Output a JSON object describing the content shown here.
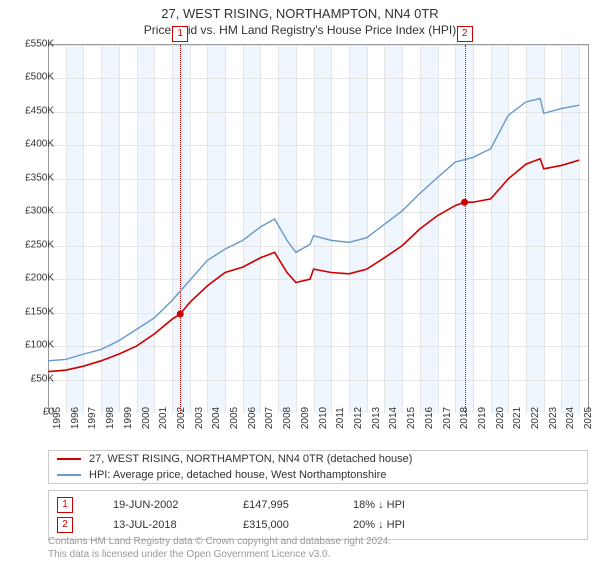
{
  "title": "27, WEST RISING, NORTHAMPTON, NN4 0TR",
  "subtitle": "Price paid vs. HM Land Registry's House Price Index (HPI)",
  "chart": {
    "type": "line",
    "background_color": "#ffffff",
    "altband_color": "#f0f6fd",
    "grid_color": "#e5e5e5",
    "axis_color": "#999999",
    "y": {
      "min": 0,
      "max": 550000,
      "tick_step": 50000,
      "labels": [
        "£0",
        "£50K",
        "£100K",
        "£150K",
        "£200K",
        "£250K",
        "£300K",
        "£350K",
        "£400K",
        "£450K",
        "£500K",
        "£550K"
      ],
      "label_fontsize": 10
    },
    "x": {
      "years": [
        1995,
        1996,
        1997,
        1998,
        1999,
        2000,
        2001,
        2002,
        2003,
        2004,
        2005,
        2006,
        2007,
        2008,
        2009,
        2010,
        2011,
        2012,
        2013,
        2014,
        2015,
        2016,
        2017,
        2018,
        2019,
        2020,
        2021,
        2022,
        2023,
        2024,
        2025
      ],
      "min": 1995,
      "max": 2025.5,
      "label_fontsize": 10
    },
    "series": [
      {
        "name": "subject_property",
        "label": "27, WEST RISING, NORTHAMPTON, NN4 0TR (detached house)",
        "color": "#cc0000",
        "line_width": 1.6,
        "data": [
          [
            1995,
            62000
          ],
          [
            1996,
            64000
          ],
          [
            1997,
            70000
          ],
          [
            1998,
            78000
          ],
          [
            1999,
            88000
          ],
          [
            2000,
            100000
          ],
          [
            2001,
            118000
          ],
          [
            2002,
            140000
          ],
          [
            2002.47,
            147995
          ],
          [
            2003,
            165000
          ],
          [
            2004,
            190000
          ],
          [
            2005,
            210000
          ],
          [
            2006,
            218000
          ],
          [
            2007,
            232000
          ],
          [
            2007.8,
            240000
          ],
          [
            2008.5,
            210000
          ],
          [
            2009,
            195000
          ],
          [
            2009.8,
            200000
          ],
          [
            2010,
            215000
          ],
          [
            2011,
            210000
          ],
          [
            2012,
            208000
          ],
          [
            2013,
            215000
          ],
          [
            2014,
            232000
          ],
          [
            2015,
            250000
          ],
          [
            2016,
            275000
          ],
          [
            2017,
            295000
          ],
          [
            2018,
            310000
          ],
          [
            2018.53,
            315000
          ],
          [
            2019,
            315000
          ],
          [
            2020,
            320000
          ],
          [
            2021,
            350000
          ],
          [
            2022,
            372000
          ],
          [
            2022.8,
            380000
          ],
          [
            2023,
            365000
          ],
          [
            2024,
            370000
          ],
          [
            2025,
            378000
          ]
        ]
      },
      {
        "name": "hpi",
        "label": "HPI: Average price, detached house, West Northamptonshire",
        "color": "#6699cc",
        "line_width": 1.4,
        "data": [
          [
            1995,
            78000
          ],
          [
            1996,
            80000
          ],
          [
            1997,
            88000
          ],
          [
            1998,
            95000
          ],
          [
            1999,
            108000
          ],
          [
            2000,
            125000
          ],
          [
            2001,
            142000
          ],
          [
            2002,
            168000
          ],
          [
            2003,
            198000
          ],
          [
            2004,
            228000
          ],
          [
            2005,
            245000
          ],
          [
            2006,
            258000
          ],
          [
            2007,
            278000
          ],
          [
            2007.8,
            290000
          ],
          [
            2008.5,
            258000
          ],
          [
            2009,
            240000
          ],
          [
            2009.8,
            252000
          ],
          [
            2010,
            265000
          ],
          [
            2011,
            258000
          ],
          [
            2012,
            255000
          ],
          [
            2013,
            262000
          ],
          [
            2014,
            282000
          ],
          [
            2015,
            302000
          ],
          [
            2016,
            328000
          ],
          [
            2017,
            352000
          ],
          [
            2018,
            375000
          ],
          [
            2019,
            382000
          ],
          [
            2020,
            395000
          ],
          [
            2021,
            445000
          ],
          [
            2022,
            465000
          ],
          [
            2022.8,
            470000
          ],
          [
            2023,
            448000
          ],
          [
            2024,
            455000
          ],
          [
            2025,
            460000
          ]
        ]
      }
    ],
    "sale_markers": [
      {
        "n": "1",
        "year": 2002.47,
        "price": 147995
      },
      {
        "n": "2",
        "year": 2018.53,
        "price": 315000
      }
    ],
    "marker_line_color": "#cc0000",
    "marker_dot_color": "#cc0000"
  },
  "legend": {
    "border_color": "#cccccc",
    "items": [
      {
        "color": "#cc0000",
        "label": "27, WEST RISING, NORTHAMPTON, NN4 0TR (detached house)"
      },
      {
        "color": "#6699cc",
        "label": "HPI: Average price, detached house, West Northamptonshire"
      }
    ]
  },
  "sales": [
    {
      "n": "1",
      "date": "19-JUN-2002",
      "price": "£147,995",
      "diff": "18% ↓ HPI"
    },
    {
      "n": "2",
      "date": "13-JUL-2018",
      "price": "£315,000",
      "diff": "20% ↓ HPI"
    }
  ],
  "footer": {
    "line1": "Contains HM Land Registry data © Crown copyright and database right 2024.",
    "line2": "This data is licensed under the Open Government Licence v3.0."
  }
}
